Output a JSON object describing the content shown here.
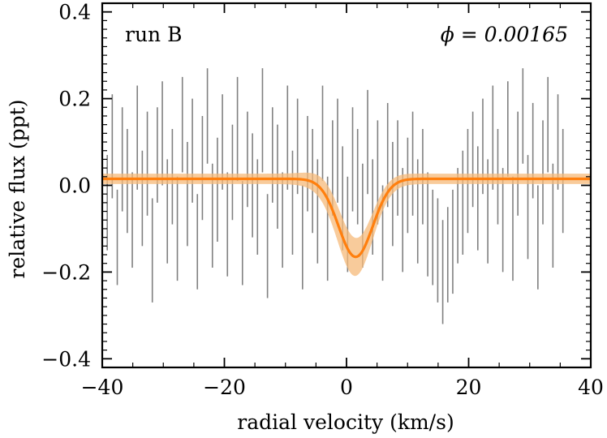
{
  "chart_data": {
    "type": "line",
    "title": "",
    "xlabel": "radial velocity (km/s)",
    "ylabel": "relative flux (ppt)",
    "xlim": [
      -40,
      40
    ],
    "ylim": [
      -0.42,
      0.42
    ],
    "xticks": [
      -40,
      -20,
      0,
      20,
      40
    ],
    "xtick_labels": [
      "−40",
      "−20",
      "0",
      "20",
      "40"
    ],
    "yticks": [
      -0.4,
      -0.2,
      0.0,
      0.2,
      0.4
    ],
    "ytick_labels": [
      "−0.4",
      "−0.2",
      "0.0",
      "0.2",
      "0.4"
    ],
    "annotations": {
      "run_label": "run B",
      "phase_label": "ϕ = 0.00165"
    },
    "grid": false,
    "colors": {
      "model": "#ff7f0e",
      "band": "#f5b97a",
      "errorbars": "#808080"
    },
    "series": [
      {
        "name": "model",
        "baseline": 0.015,
        "center": 1.5,
        "depth": 0.18,
        "sigma": 2.8,
        "band_halfwidth_continuum": 0.012,
        "band_halfwidth_core": 0.045,
        "band_center_shift": -1.0
      },
      {
        "name": "data",
        "x_start": -40,
        "x_step": 0.82,
        "values": [
          0.02,
          -0.04,
          0.09,
          -0.12,
          0.06,
          0.01,
          -0.08,
          0.11,
          -0.03,
          0.05,
          -0.15,
          0.07,
          0.12,
          -0.06,
          0.02,
          -0.1,
          0.14,
          -0.02,
          0.08,
          -0.13,
          0.04,
          0.16,
          -0.07,
          -0.01,
          0.1,
          -0.09,
          0.03,
          0.13,
          -0.11,
          0.06,
          0.0,
          -0.05,
          0.15,
          -0.14,
          0.07,
          0.02,
          -0.08,
          0.11,
          -0.04,
          0.09,
          -0.12,
          0.05,
          0.01,
          -0.06,
          0.12,
          -0.1,
          0.04,
          0.08,
          -0.03,
          -0.09,
          0.06,
          0.02,
          -0.07,
          0.1,
          -0.05,
          0.03,
          -0.11,
          0.07,
          -0.02,
          0.04,
          -0.08,
          0.0,
          0.05,
          -0.06,
          0.02,
          -0.09,
          -0.12,
          -0.15,
          -0.2,
          -0.16,
          -0.13,
          -0.07,
          -0.04,
          0.01,
          0.06,
          -0.03,
          0.09,
          -0.06,
          0.11,
          0.02,
          -0.08,
          0.13,
          -0.1,
          0.05,
          0.16,
          -0.05,
          0.08,
          -0.12,
          0.03,
          0.14,
          -0.07,
          0.1,
          0.01
        ],
        "errors": [
          0.12,
          0.11,
          0.12,
          0.11,
          0.12,
          0.12,
          0.11,
          0.12,
          0.11,
          0.12,
          0.12,
          0.11,
          0.12,
          0.12,
          0.11,
          0.12,
          0.11,
          0.12,
          0.12,
          0.11,
          0.12,
          0.11,
          0.12,
          0.12,
          0.11,
          0.12,
          0.11,
          0.12,
          0.12,
          0.11,
          0.12,
          0.11,
          0.12,
          0.12,
          0.11,
          0.12,
          0.11,
          0.12,
          0.12,
          0.11,
          0.12,
          0.11,
          0.12,
          0.12,
          0.11,
          0.12,
          0.11,
          0.12,
          0.12,
          0.11,
          0.12,
          0.11,
          0.12,
          0.12,
          0.11,
          0.12,
          0.11,
          0.12,
          0.12,
          0.11,
          0.12,
          0.11,
          0.12,
          0.12,
          0.11,
          0.12,
          0.11,
          0.12,
          0.12,
          0.11,
          0.12,
          0.11,
          0.12,
          0.12,
          0.11,
          0.12,
          0.11,
          0.12,
          0.12,
          0.11,
          0.12,
          0.11,
          0.12,
          0.12,
          0.11,
          0.12,
          0.11,
          0.12,
          0.12,
          0.11,
          0.12,
          0.11,
          0.12
        ]
      }
    ]
  }
}
